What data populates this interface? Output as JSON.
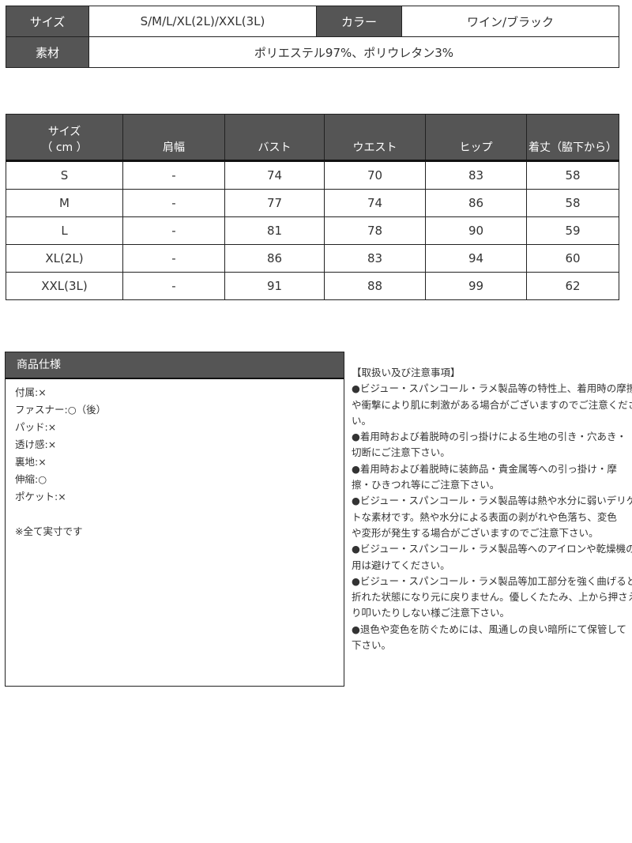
{
  "info_table": {
    "size_label": "サイズ",
    "size_value": "S/M/L/XL(2L)/XXL(3L)",
    "color_label": "カラー",
    "color_value": "ワイン/ブラック",
    "material_label": "素材",
    "material_value": "ポリエステル97%、ポリウレタン3%"
  },
  "size_table": {
    "headers": [
      "サイズ",
      "（ cm ）",
      "肩幅",
      "バスト",
      "ウエスト",
      "ヒップ",
      "着丈（脇下から）"
    ],
    "rows": [
      [
        "S",
        "-",
        "74",
        "70",
        "83",
        "58"
      ],
      [
        "M",
        "-",
        "77",
        "74",
        "86",
        "58"
      ],
      [
        "L",
        "-",
        "81",
        "78",
        "90",
        "59"
      ],
      [
        "XL(2L)",
        "-",
        "86",
        "83",
        "94",
        "60"
      ],
      [
        "XXL(3L)",
        "-",
        "91",
        "88",
        "99",
        "62"
      ]
    ]
  },
  "spec": {
    "title": "商品仕様",
    "items": [
      "付属:×",
      "ファスナー:○（後）",
      "パッド:×",
      "透け感:×",
      "裏地:×",
      "伸縮:○",
      "ポケット:×"
    ],
    "note": "※全て実寸です"
  },
  "notes": {
    "title": "【取扱い及び注意事項】",
    "lines": [
      "●ビジュー・スパンコール・ラメ製品等の特性上、着用時の摩擦",
      "や衝撃により肌に刺激がある場合がございますのでご注意くださ",
      "い。",
      "●着用時および着脱時の引っ掛けによる生地の引き・穴あき・",
      "切断にご注意下さい。",
      "●着用時および着脱時に装飾品・貴金属等への引っ掛け・摩",
      "擦・ひきつれ等にご注意下さい。",
      "●ビジュー・スパンコール・ラメ製品等は熱や水分に弱いデリケー",
      "トな素材です。熱や水分による表面の剥がれや色落ち、変色",
      "や変形が発生する場合がございますのでご注意下さい。",
      "●ビジュー・スパンコール・ラメ製品等へのアイロンや乾燥機の使",
      "用は避けてください。",
      "●ビジュー・スパンコール・ラメ製品等加工部分を強く曲げると",
      "折れた状態になり元に戻りません。優しくたたみ、上から押さえた",
      "り叩いたりしない様ご注意下さい。",
      "●退色や変色を防ぐためには、風通しの良い暗所にて保管して",
      "下さい。"
    ]
  }
}
